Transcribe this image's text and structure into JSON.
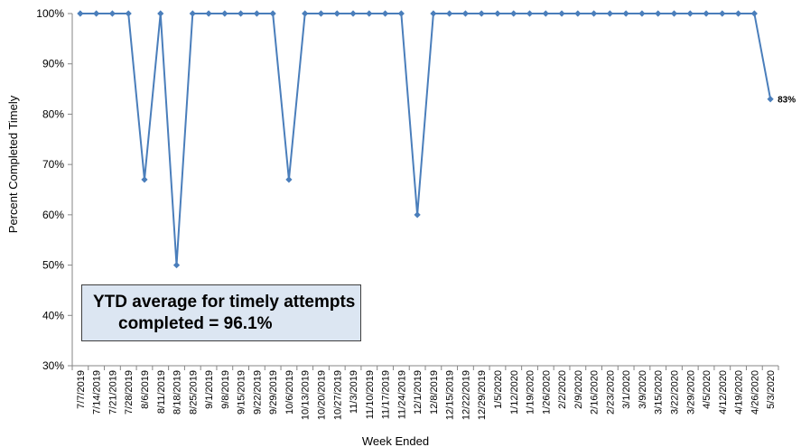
{
  "chart_data": {
    "type": "line",
    "xlabel": "Week Ended",
    "ylabel": "Percent Completed Timely",
    "ylim": [
      30,
      100
    ],
    "yticks": [
      "30%",
      "40%",
      "50%",
      "60%",
      "70%",
      "80%",
      "90%",
      "100%"
    ],
    "grid": false,
    "series_color": "#4a7ebb",
    "categories": [
      "7/7/2019",
      "7/14/2019",
      "7/21/2019",
      "7/28/2019",
      "8/6/2019",
      "8/11/2019",
      "8/18/2019",
      "8/25/2019",
      "9/1/2019",
      "9/8/2019",
      "9/15/2019",
      "9/22/2019",
      "9/29/2019",
      "10/6/2019",
      "10/13/2019",
      "10/20/2019",
      "10/27/2019",
      "11/3/2019",
      "11/10/2019",
      "11/17/2019",
      "11/24/2019",
      "12/1/2019",
      "12/8/2019",
      "12/15/2019",
      "12/22/2019",
      "12/29/2019",
      "1/5/2020",
      "1/12/2020",
      "1/19/2020",
      "1/26/2020",
      "2/2/2020",
      "2/9/2020",
      "2/16/2020",
      "2/23/2020",
      "3/1/2020",
      "3/9/2020",
      "3/15/2020",
      "3/22/2020",
      "3/29/2020",
      "4/5/2020",
      "4/12/2020",
      "4/19/2020",
      "4/26/2020",
      "5/3/2020"
    ],
    "values": [
      100,
      100,
      100,
      100,
      67,
      100,
      50,
      100,
      100,
      100,
      100,
      100,
      100,
      67,
      100,
      100,
      100,
      100,
      100,
      100,
      100,
      60,
      100,
      100,
      100,
      100,
      100,
      100,
      100,
      100,
      100,
      100,
      100,
      100,
      100,
      100,
      100,
      100,
      100,
      100,
      100,
      100,
      100,
      83
    ],
    "data_labels": [
      {
        "index": 43,
        "text": "83%"
      }
    ]
  },
  "annotation": {
    "line1": "YTD average for timely attempts",
    "line2": "completed =  96.1%"
  }
}
